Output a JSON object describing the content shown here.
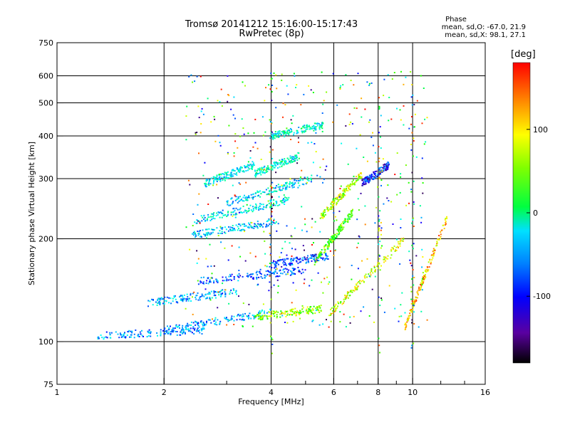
{
  "header": {
    "title_line1": "Tromsø 20141212 15:16:00-15:17:43",
    "title_line2": "RwPretec (8p)"
  },
  "legend": {
    "title": "Phase",
    "o_line": "mean, sd,O: -67.0, 21.9",
    "x_line": "mean, sd,X: 98.1, 27.1"
  },
  "colorbar": {
    "unit": "[deg]",
    "ticks": [
      "100",
      "0",
      "-100"
    ],
    "tick_values": [
      100,
      0,
      -100
    ],
    "range": [
      -180,
      180
    ]
  },
  "chart_data": {
    "type": "scatter",
    "xlabel": "Frequency [MHz]",
    "ylabel": "Stationary phase Virtual Height [km]",
    "x_scale": "log",
    "y_scale": "log",
    "xlim": [
      1,
      16
    ],
    "ylim": [
      75,
      750
    ],
    "x_ticks": [
      1,
      2,
      4,
      6,
      8,
      10,
      16
    ],
    "x_tick_labels": [
      "1",
      "2",
      "4",
      "6",
      "8",
      "10",
      "16"
    ],
    "y_ticks": [
      75,
      100,
      200,
      300,
      400,
      500,
      600,
      750
    ],
    "y_tick_labels": [
      "75",
      "100",
      "200",
      "300",
      "400",
      "500",
      "600",
      "750"
    ],
    "grid": true,
    "color_scale": "rainbow (phase, deg)",
    "traces": [
      {
        "f_range": [
          1.3,
          2.6
        ],
        "h_start": 104,
        "h_end": 108,
        "phase": -85
      },
      {
        "f_range": [
          2.0,
          4.0
        ],
        "h_start": 108,
        "h_end": 122,
        "phase": -80
      },
      {
        "f_range": [
          3.6,
          5.6
        ],
        "h_start": 118,
        "h_end": 125,
        "phase": 70
      },
      {
        "f_range": [
          1.8,
          3.2
        ],
        "h_start": 130,
        "h_end": 140,
        "phase": -75
      },
      {
        "f_range": [
          2.5,
          5.0
        ],
        "h_start": 150,
        "h_end": 162,
        "phase": -100
      },
      {
        "f_range": [
          4.0,
          5.8
        ],
        "h_start": 168,
        "h_end": 178,
        "phase": -110
      },
      {
        "f_range": [
          5.3,
          6.8
        ],
        "h_start": 170,
        "h_end": 240,
        "phase": 45
      },
      {
        "f_range": [
          2.4,
          4.2
        ],
        "h_start": 205,
        "h_end": 225,
        "phase": -70
      },
      {
        "f_range": [
          2.4,
          4.5
        ],
        "h_start": 225,
        "h_end": 260,
        "phase": -55
      },
      {
        "f_range": [
          3.0,
          5.2
        ],
        "h_start": 255,
        "h_end": 300,
        "phase": -60
      },
      {
        "f_range": [
          2.6,
          3.6
        ],
        "h_start": 290,
        "h_end": 330,
        "phase": -50
      },
      {
        "f_range": [
          3.6,
          4.8
        ],
        "h_start": 310,
        "h_end": 350,
        "phase": -45
      },
      {
        "f_range": [
          4.0,
          5.6
        ],
        "h_start": 400,
        "h_end": 430,
        "phase": -40
      },
      {
        "f_range": [
          5.5,
          7.2
        ],
        "h_start": 230,
        "h_end": 310,
        "phase": 80
      },
      {
        "f_range": [
          7.2,
          8.6
        ],
        "h_start": 290,
        "h_end": 330,
        "phase": -120
      },
      {
        "f_range": [
          5.8,
          9.5
        ],
        "h_start": 120,
        "h_end": 200,
        "phase": 90
      },
      {
        "f_range": [
          9.5,
          12.5
        ],
        "h_start": 110,
        "h_end": 230,
        "phase": 120
      }
    ]
  }
}
